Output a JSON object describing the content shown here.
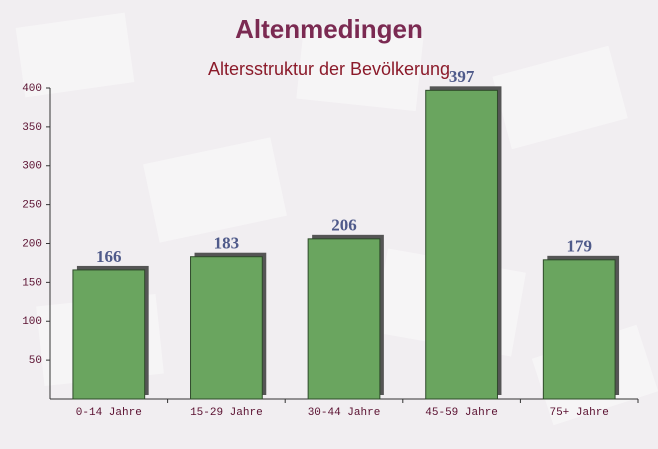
{
  "chart_data": {
    "type": "bar",
    "title": "Altenmedingen",
    "subtitle": "Altersstruktur der Bevölkerung",
    "categories": [
      "0-14 Jahre",
      "15-29 Jahre",
      "30-44 Jahre",
      "45-59 Jahre",
      "75+ Jahre"
    ],
    "values": [
      166,
      183,
      206,
      397,
      179
    ],
    "color": "#6aa55f",
    "ylim": [
      0,
      400
    ],
    "yticks": [
      50,
      100,
      150,
      200,
      250,
      300,
      350,
      400
    ],
    "grid": false
  }
}
